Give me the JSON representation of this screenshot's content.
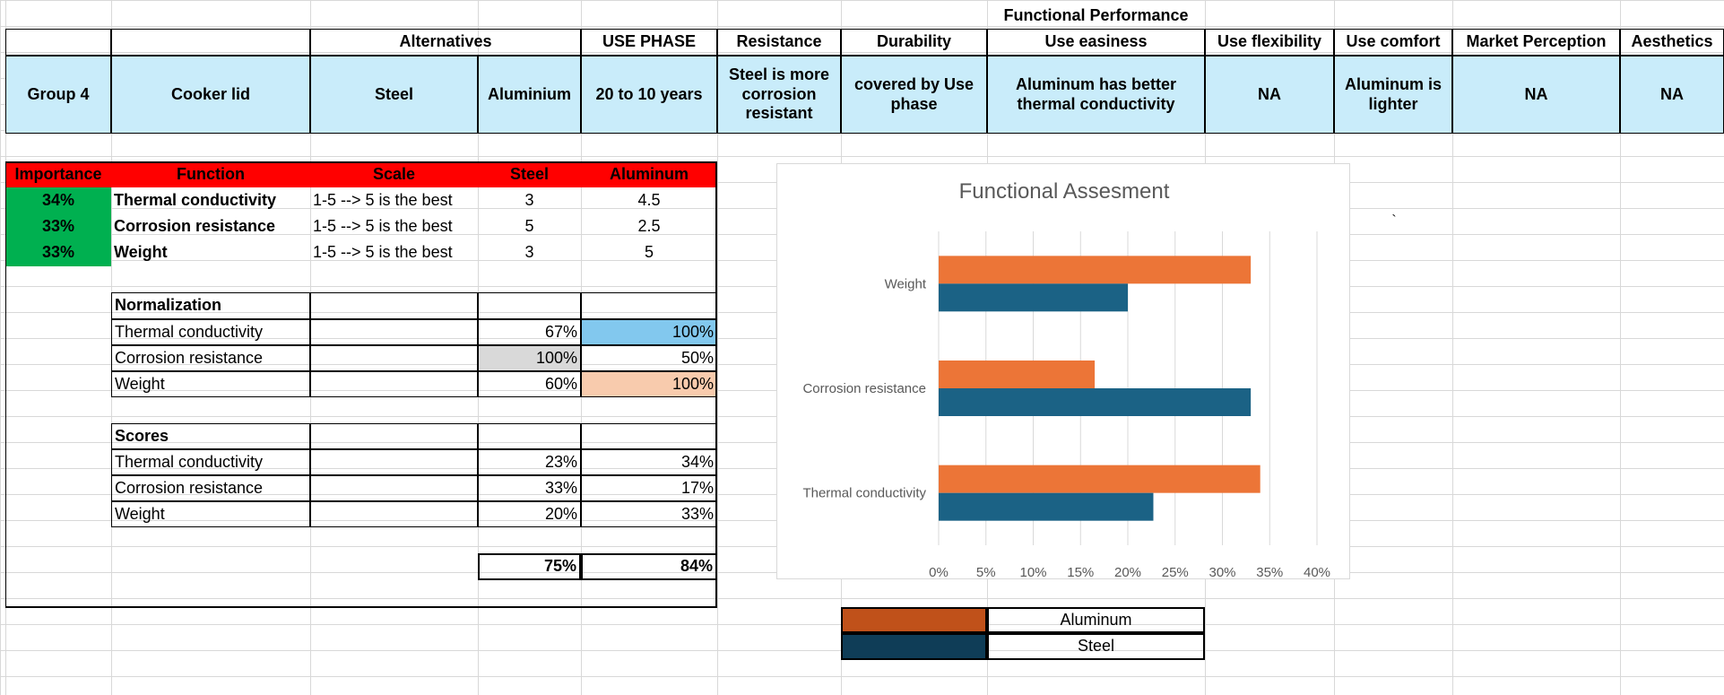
{
  "header": {
    "functional_performance": "Functional Performance",
    "alternatives": "Alternatives",
    "use_phase": "USE PHASE",
    "resistance": "Resistance",
    "durability": "Durability",
    "use_easiness": "Use easiness",
    "use_flexibility": "Use flexibility",
    "use_comfort": "Use comfort",
    "market_perception": "Market Perception",
    "aesthetics": "Aesthetics"
  },
  "info_row": {
    "group": "Group 4",
    "product": "Cooker lid",
    "alt1": "Steel",
    "alt2": "Aluminium",
    "use_phase": "20 to 10  years",
    "resistance": "Steel is more corrosion resistant",
    "durability": "covered by Use phase",
    "use_easiness": "Aluminum has better thermal conductivity",
    "use_flexibility": "NA",
    "use_comfort": "Aluminum is lighter",
    "market_perception": "NA",
    "aesthetics": "NA"
  },
  "function_table": {
    "headers": {
      "importance": "Importance",
      "function": "Function",
      "scale": "Scale",
      "steel": "Steel",
      "aluminum": "Aluminum"
    },
    "rows": [
      {
        "importance": "34%",
        "function": "Thermal conductivity",
        "scale": "1-5 --> 5 is the best",
        "steel": "3",
        "aluminum": "4.5"
      },
      {
        "importance": "33%",
        "function": "Corrosion resistance",
        "scale": "1-5 --> 5 is the best",
        "steel": "5",
        "aluminum": "2.5"
      },
      {
        "importance": "33%",
        "function": "Weight",
        "scale": "1-5 --> 5 is the best",
        "steel": "3",
        "aluminum": "5"
      }
    ]
  },
  "normalization": {
    "title": "Normalization",
    "rows": [
      {
        "label": "Thermal conductivity",
        "steel": "67%",
        "aluminum": "100%"
      },
      {
        "label": "Corrosion resistance",
        "steel": "100%",
        "aluminum": "50%"
      },
      {
        "label": "Weight",
        "steel": "60%",
        "aluminum": "100%"
      }
    ]
  },
  "scores": {
    "title": "Scores",
    "rows": [
      {
        "label": "Thermal conductivity",
        "steel": "23%",
        "aluminum": "34%"
      },
      {
        "label": "Corrosion resistance",
        "steel": "33%",
        "aluminum": "17%"
      },
      {
        "label": "Weight",
        "steel": "20%",
        "aluminum": "33%"
      }
    ],
    "total_steel": "75%",
    "total_aluminum": "84%"
  },
  "stray_mark": "`",
  "legend_box": {
    "aluminum_label": "Aluminum",
    "steel_label": "Steel",
    "aluminum_color": "#c0511a",
    "steel_color": "#0f3d57"
  },
  "chart_data": {
    "type": "bar",
    "orientation": "horizontal",
    "title": "Functional Assesment",
    "categories": [
      "Thermal conductivity",
      "Corrosion resistance",
      "Weight"
    ],
    "series": [
      {
        "name": "Steel",
        "values": [
          22.7,
          33,
          20
        ],
        "color": "#1b6285"
      },
      {
        "name": "Aluminum",
        "values": [
          34,
          16.5,
          33
        ],
        "color": "#ec7537"
      }
    ],
    "xlim": [
      0,
      40
    ],
    "xticks": [
      "0%",
      "5%",
      "10%",
      "15%",
      "20%",
      "25%",
      "30%",
      "35%",
      "40%"
    ],
    "tick_values": [
      0,
      5,
      10,
      15,
      20,
      25,
      30,
      35,
      40
    ],
    "grid": true,
    "legend": "none"
  }
}
